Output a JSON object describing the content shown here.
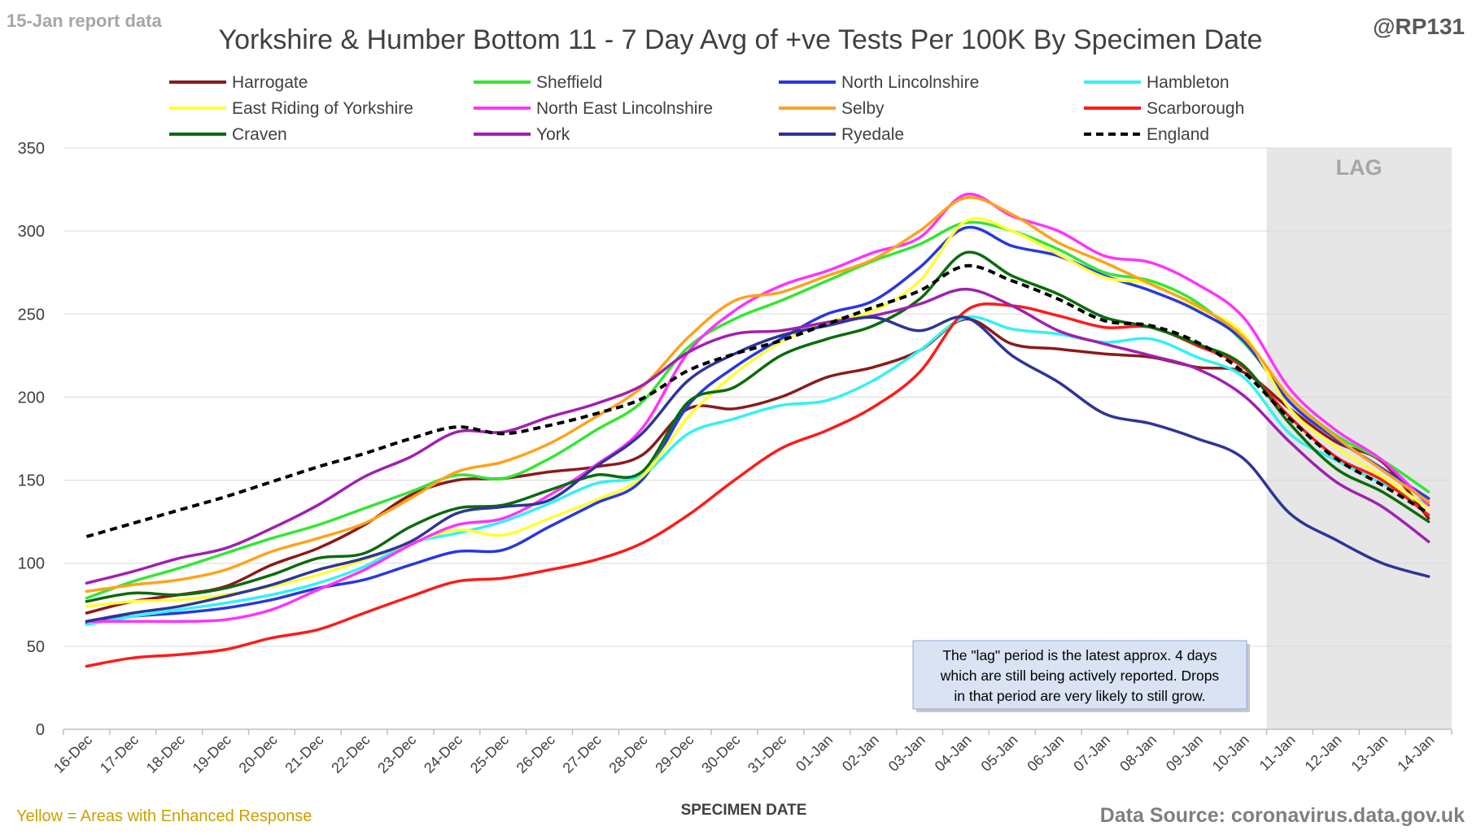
{
  "header": {
    "report_label": "15-Jan report data",
    "author": "@RP131"
  },
  "footer": {
    "enhanced_note": "Yellow = Areas with Enhanced Response",
    "source": "Data Source: coronavirus.data.gov.uk"
  },
  "colors": {
    "title": "#404040",
    "report_label": "#a6a6a6",
    "author": "#595959",
    "enhanced_note": "#c9a100",
    "source": "#7f7f7f",
    "lag_shade": "#e6e6e6",
    "lag_text": "#a6a6a6",
    "gridline": "#d9d9d9",
    "note_fill": "#dae3f3",
    "note_border": "#8faadc"
  },
  "chart_data": {
    "type": "line",
    "title": "Yorkshire & Humber Bottom 11 - 7 Day Avg of +ve Tests Per 100K By Specimen Date",
    "xlabel": "SPECIMEN DATE",
    "ylabel": "",
    "ylim": [
      0,
      350
    ],
    "yticks": [
      0,
      50,
      100,
      150,
      200,
      250,
      300,
      350
    ],
    "grid": true,
    "legend_position": "top",
    "categories": [
      "16-Dec",
      "17-Dec",
      "18-Dec",
      "19-Dec",
      "20-Dec",
      "21-Dec",
      "22-Dec",
      "23-Dec",
      "24-Dec",
      "25-Dec",
      "26-Dec",
      "27-Dec",
      "28-Dec",
      "29-Dec",
      "30-Dec",
      "31-Dec",
      "01-Jan",
      "02-Jan",
      "03-Jan",
      "04-Jan",
      "05-Jan",
      "06-Jan",
      "07-Jan",
      "08-Jan",
      "09-Jan",
      "10-Jan",
      "11-Jan",
      "12-Jan",
      "13-Jan",
      "14-Jan"
    ],
    "lag_region": {
      "start": "11-Jan",
      "end": "14-Jan",
      "label": "LAG"
    },
    "annotation": {
      "lines": [
        "The \"lag\" period is the latest approx. 4 days",
        "which are still being actively reported. Drops",
        "in that period are very likely to still grow."
      ]
    },
    "series": [
      {
        "name": "Harrogate",
        "color": "#8b1a1a",
        "dash": false,
        "values": [
          70,
          77,
          81,
          86,
          99,
          109,
          123,
          141,
          150,
          151,
          155,
          158,
          165,
          193,
          193,
          200,
          212,
          218,
          228,
          247,
          232,
          229,
          226,
          224,
          218,
          215,
          193,
          173,
          161,
          127
        ]
      },
      {
        "name": "Sheffield",
        "color": "#33e633",
        "dash": false,
        "values": [
          79,
          89,
          97,
          106,
          115,
          123,
          133,
          143,
          153,
          151,
          163,
          180,
          197,
          230,
          247,
          258,
          270,
          282,
          292,
          305,
          300,
          289,
          275,
          270,
          257,
          233,
          200,
          177,
          162,
          143
        ]
      },
      {
        "name": "North Lincolnshire",
        "color": "#2838e0",
        "dash": false,
        "values": [
          64,
          68,
          70,
          73,
          78,
          85,
          90,
          99,
          107,
          108,
          122,
          136,
          150,
          195,
          218,
          235,
          250,
          258,
          278,
          302,
          291,
          285,
          273,
          264,
          252,
          234,
          197,
          175,
          157,
          139
        ]
      },
      {
        "name": "Hambleton",
        "color": "#33f2f2",
        "dash": false,
        "values": [
          63,
          68,
          72,
          76,
          81,
          88,
          98,
          112,
          118,
          125,
          136,
          148,
          153,
          178,
          187,
          195,
          198,
          210,
          228,
          248,
          241,
          238,
          233,
          235,
          224,
          212,
          178,
          162,
          148,
          135
        ]
      },
      {
        "name": "East Riding of Yorkshire",
        "color": "#ffff33",
        "dash": false,
        "values": [
          74,
          77,
          78,
          81,
          86,
          93,
          102,
          112,
          120,
          117,
          127,
          138,
          152,
          188,
          214,
          233,
          245,
          252,
          270,
          306,
          300,
          286,
          272,
          268,
          254,
          238,
          193,
          170,
          152,
          133
        ]
      },
      {
        "name": "North East Lincolnshire",
        "color": "#ff33ff",
        "dash": false,
        "values": [
          65,
          65,
          65,
          66,
          72,
          84,
          96,
          111,
          123,
          127,
          141,
          159,
          181,
          227,
          252,
          267,
          276,
          287,
          296,
          322,
          309,
          300,
          285,
          281,
          268,
          248,
          205,
          180,
          162,
          135
        ]
      },
      {
        "name": "Selby",
        "color": "#ffa21a",
        "dash": false,
        "values": [
          83,
          87,
          90,
          96,
          107,
          115,
          124,
          139,
          155,
          161,
          172,
          188,
          206,
          236,
          258,
          263,
          273,
          283,
          300,
          320,
          310,
          293,
          281,
          268,
          255,
          236,
          200,
          176,
          156,
          137
        ]
      },
      {
        "name": "Scarborough",
        "color": "#ff1a1a",
        "dash": false,
        "values": [
          38,
          43,
          45,
          48,
          55,
          60,
          70,
          80,
          89,
          91,
          96,
          102,
          112,
          129,
          150,
          169,
          180,
          194,
          215,
          252,
          255,
          249,
          242,
          242,
          231,
          218,
          188,
          164,
          150,
          129
        ]
      },
      {
        "name": "Craven",
        "color": "#0b6b0b",
        "dash": false,
        "values": [
          77,
          82,
          81,
          85,
          93,
          103,
          106,
          122,
          133,
          135,
          144,
          153,
          155,
          197,
          206,
          225,
          235,
          243,
          259,
          287,
          273,
          262,
          248,
          242,
          232,
          219,
          184,
          157,
          143,
          125
        ]
      },
      {
        "name": "York",
        "color": "#a020b0",
        "dash": false,
        "values": [
          88,
          95,
          103,
          109,
          121,
          135,
          152,
          164,
          179,
          179,
          188,
          196,
          207,
          227,
          238,
          240,
          245,
          249,
          256,
          265,
          255,
          240,
          232,
          225,
          217,
          201,
          173,
          149,
          134,
          113
        ]
      },
      {
        "name": "Ryedale",
        "color": "#2e3596",
        "dash": false,
        "values": [
          65,
          70,
          74,
          80,
          87,
          96,
          103,
          113,
          130,
          134,
          138,
          158,
          178,
          210,
          226,
          237,
          243,
          248,
          240,
          248,
          225,
          209,
          190,
          184,
          175,
          163,
          130,
          114,
          100,
          92
        ]
      },
      {
        "name": "England",
        "color": "#000000",
        "dash": true,
        "values": [
          116,
          124,
          132,
          140,
          149,
          158,
          166,
          175,
          182,
          178,
          183,
          190,
          199,
          216,
          226,
          234,
          244,
          254,
          264,
          279,
          270,
          259,
          246,
          243,
          233,
          215,
          187,
          163,
          147,
          130
        ]
      }
    ]
  }
}
